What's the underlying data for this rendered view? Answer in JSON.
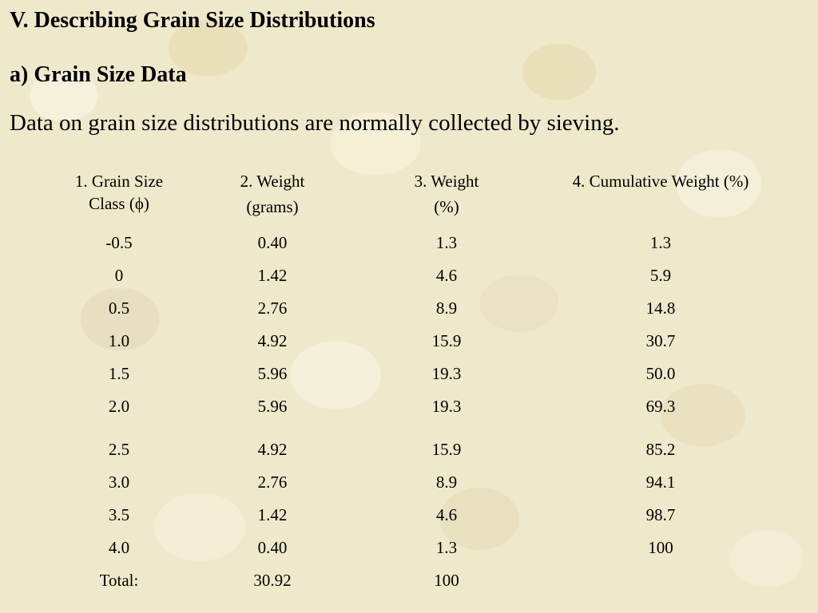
{
  "header": {
    "title": "V.  Describing Grain Size Distributions",
    "subtitle": "a)  Grain Size Data",
    "text": "Data on grain size distributions are normally collected by sieving."
  },
  "table": {
    "columns": [
      [
        "1. Grain Size",
        "Class (ϕ)"
      ],
      [
        "2. Weight",
        "(grams)"
      ],
      [
        "3. Weight",
        "(%)"
      ],
      [
        "4. Cumulative Weight (%)"
      ]
    ],
    "rows": [
      [
        "-0.5",
        "0.40",
        "1.3",
        "1.3"
      ],
      [
        "0",
        "1.42",
        "4.6",
        "5.9"
      ],
      [
        "0.5",
        "2.76",
        "8.9",
        "14.8"
      ],
      [
        "1.0",
        "4.92",
        "15.9",
        "30.7"
      ],
      [
        "1.5",
        "5.96",
        "19.3",
        "50.0"
      ],
      [
        "2.0",
        "5.96",
        "19.3",
        "69.3"
      ],
      [
        "2.5",
        "4.92",
        "15.9",
        "85.2"
      ],
      [
        "3.0",
        "2.76",
        "8.9",
        "94.1"
      ],
      [
        "3.5",
        "1.42",
        "4.6",
        "98.7"
      ],
      [
        "4.0",
        "0.40",
        "1.3",
        "100"
      ],
      [
        "Total:",
        "30.92",
        "100"
      ]
    ]
  }
}
